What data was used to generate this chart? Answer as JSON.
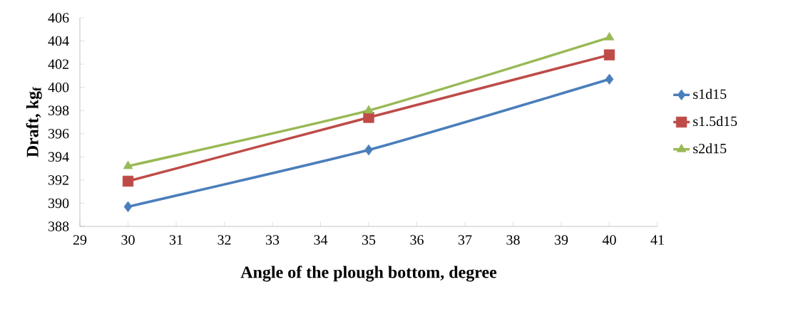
{
  "chart_data": {
    "type": "line",
    "xlabel": "Angle of the plough bottom, degree",
    "ylabel": "Draft, kg$_{f}$",
    "x": [
      30,
      35,
      40
    ],
    "series": [
      {
        "name": "s1d15",
        "color": "#4a7ebb",
        "values": [
          389.7,
          394.6,
          400.7
        ],
        "marker": "diamond"
      },
      {
        "name": "s1.5d15",
        "color": "#be4b48",
        "values": [
          391.9,
          397.4,
          402.8
        ],
        "marker": "square"
      },
      {
        "name": "s2d15",
        "color": "#98b954",
        "values": [
          393.2,
          398.0,
          404.3
        ],
        "marker": "triangle"
      }
    ],
    "xlim": [
      29,
      41
    ],
    "xticks": [
      29,
      30,
      31,
      32,
      33,
      34,
      35,
      36,
      37,
      38,
      39,
      40,
      41
    ],
    "ylim": [
      388,
      406
    ],
    "yticks": [
      388,
      390,
      392,
      394,
      396,
      398,
      400,
      402,
      404,
      406
    ],
    "grid": false,
    "legend": "right",
    "line_style": "solid"
  }
}
